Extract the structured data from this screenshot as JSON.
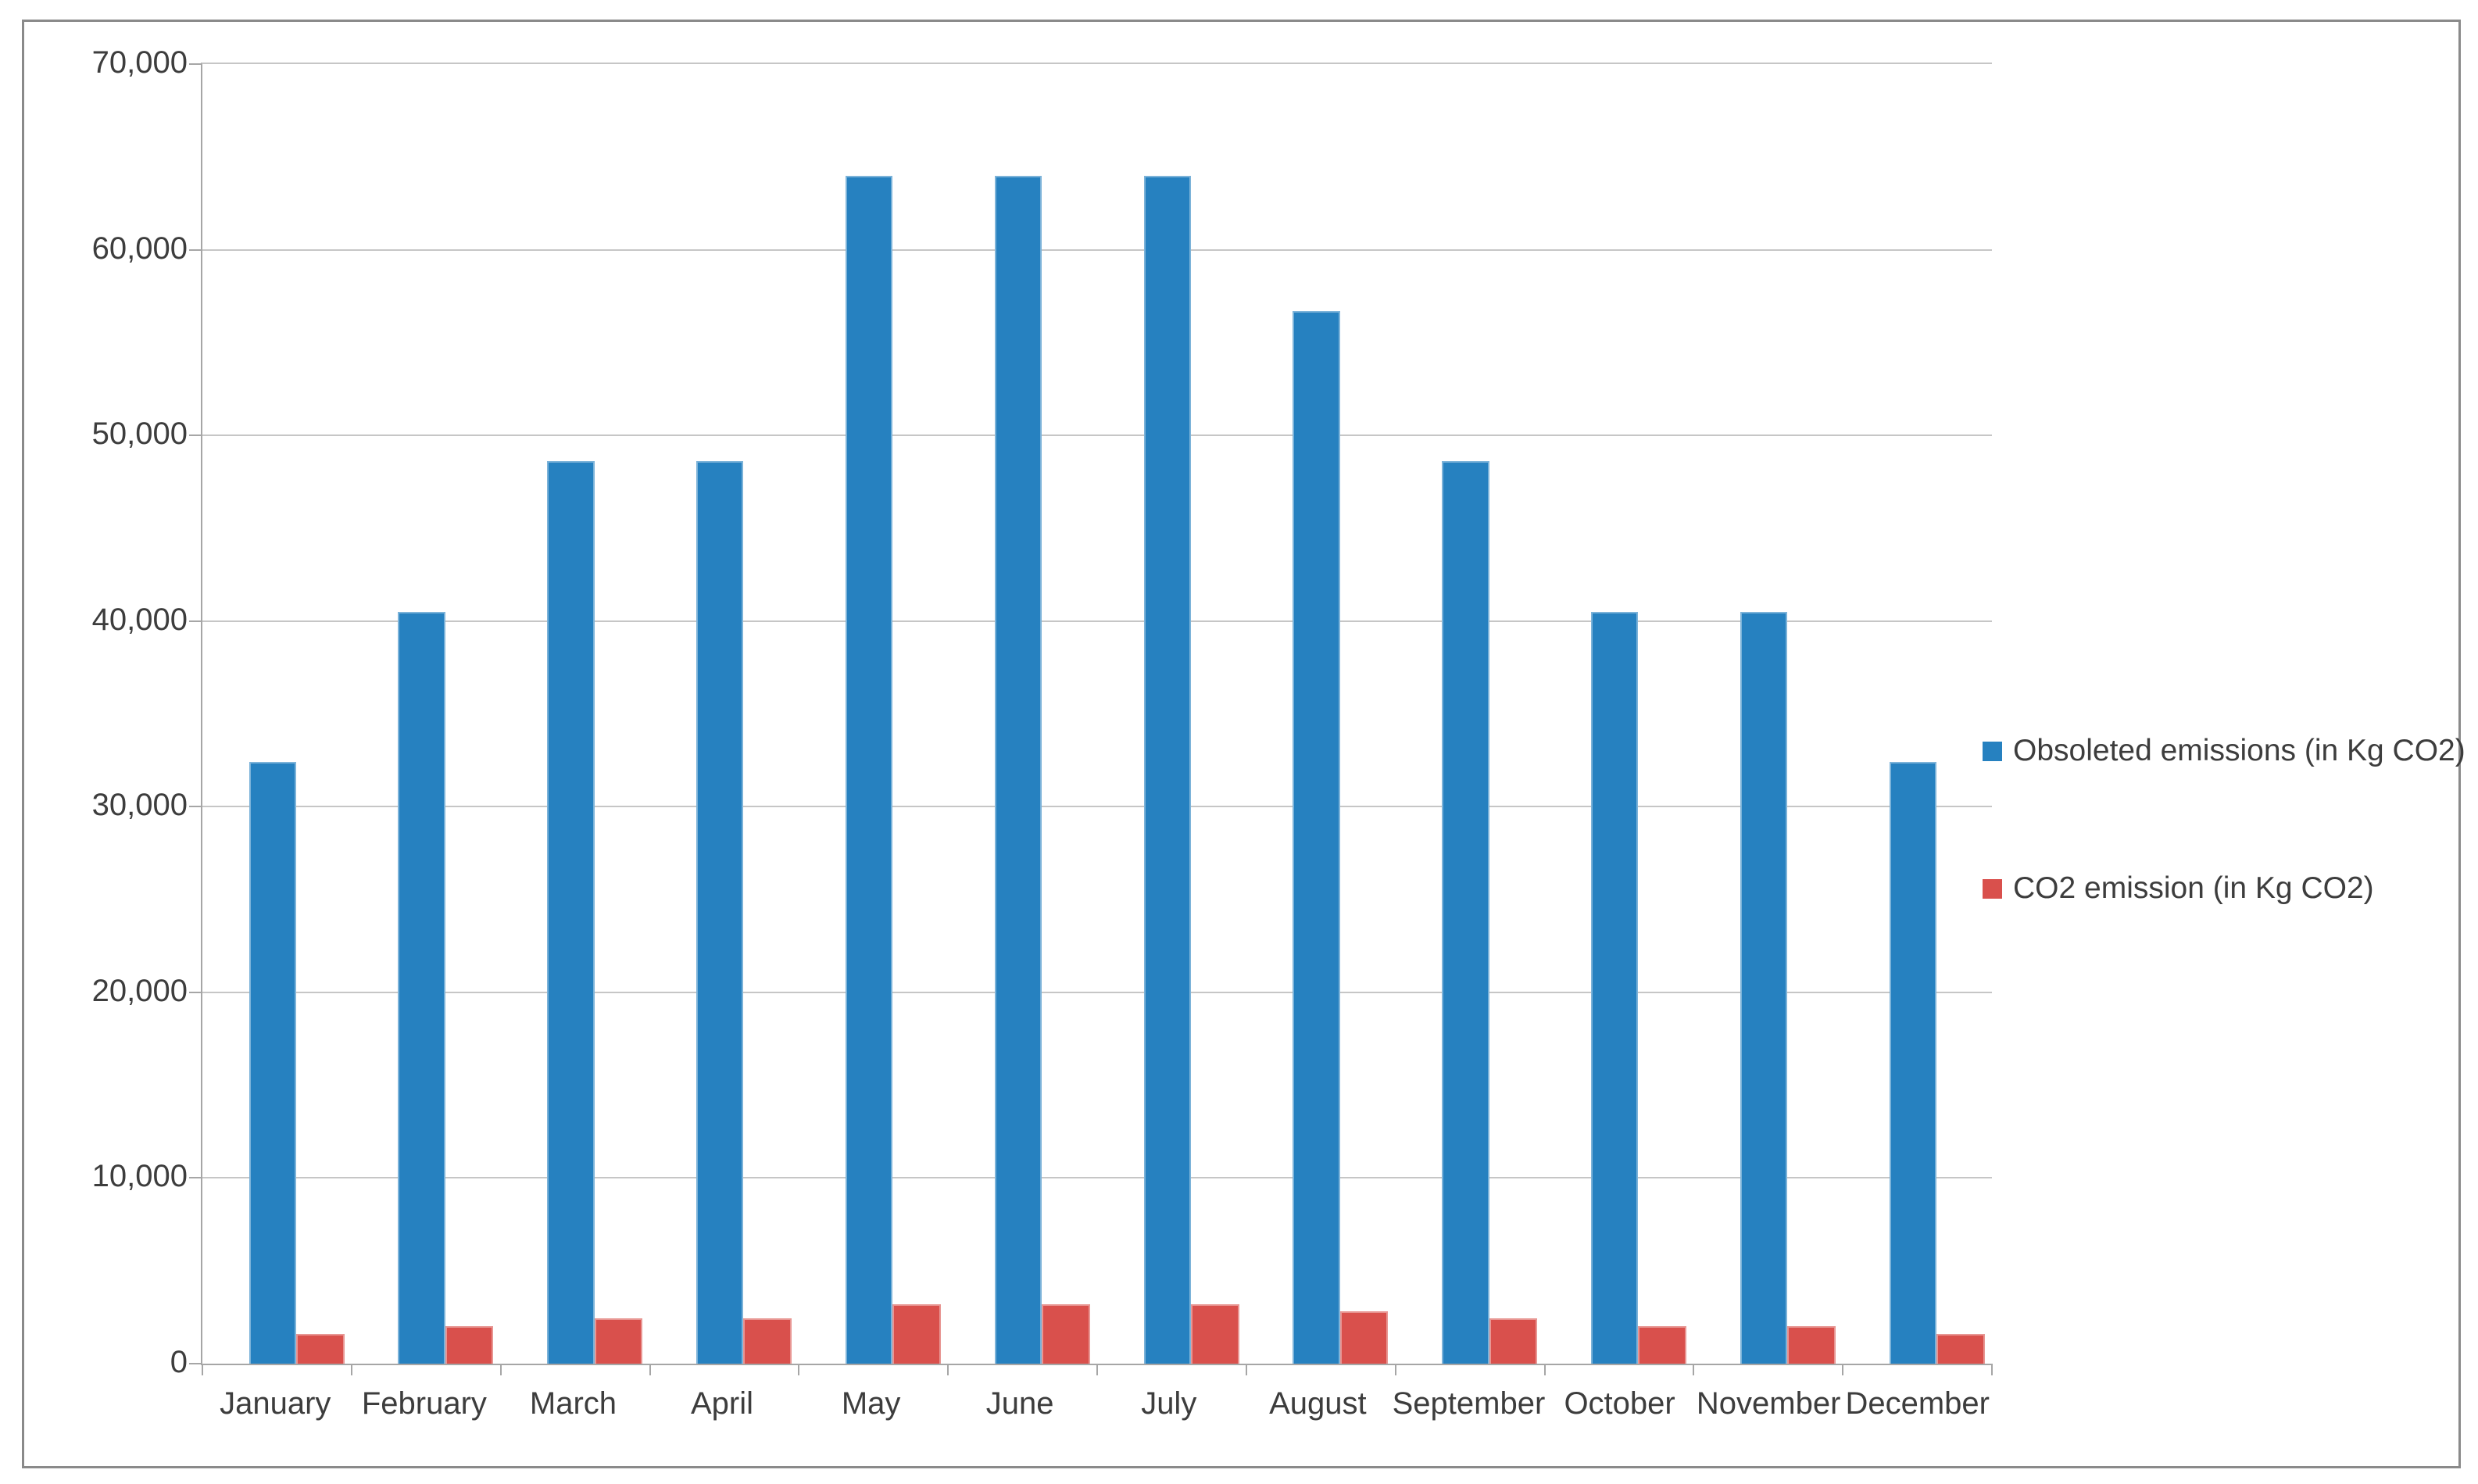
{
  "chart_data": {
    "type": "bar",
    "title": "",
    "xlabel": "",
    "ylabel": "",
    "categories": [
      "January",
      "February",
      "March",
      "April",
      "May",
      "June",
      "July",
      "August",
      "September",
      "October",
      "November",
      "December"
    ],
    "series": [
      {
        "name": "Obsoleted emissions (in Kg CO2)",
        "color": "#2681c0",
        "values": [
          32400,
          40500,
          48600,
          48600,
          64000,
          64000,
          64000,
          56700,
          48600,
          40500,
          40500,
          32400
        ]
      },
      {
        "name": "CO2 emission (in Kg CO2)",
        "color": "#d9504c",
        "values": [
          1620,
          2025,
          2430,
          2430,
          3200,
          3200,
          3200,
          2835,
          2430,
          2025,
          2025,
          1620
        ]
      }
    ],
    "ylim": [
      0,
      70000
    ],
    "ytick_step": 10000,
    "ytick_labels": [
      "0",
      "10,000",
      "20,000",
      "30,000",
      "40,000",
      "50,000",
      "60,000",
      "70,000"
    ],
    "grid": true,
    "legend_position": "right"
  }
}
